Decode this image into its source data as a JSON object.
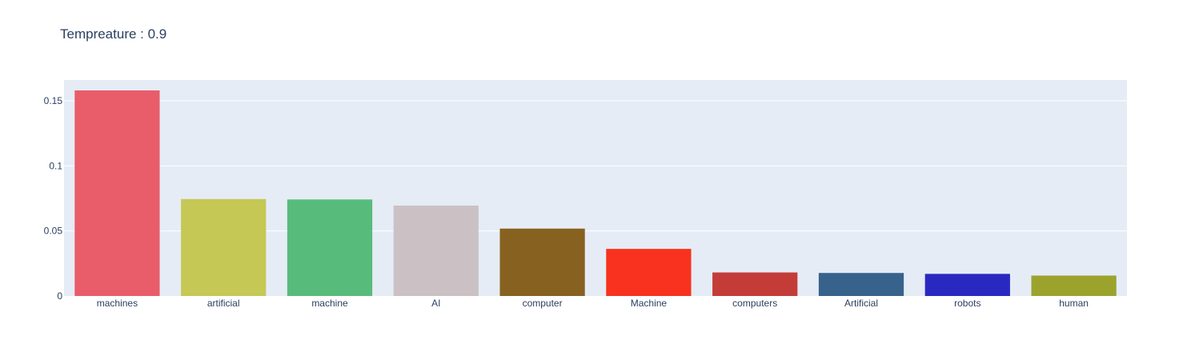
{
  "chart_data": {
    "type": "bar",
    "title": "Tempreature : 0.9",
    "categories": [
      "machines",
      "artificial",
      "machine",
      "AI",
      "computer",
      "Machine",
      "computers",
      "Artificial",
      "robots",
      "human"
    ],
    "values": [
      0.158,
      0.0745,
      0.0742,
      0.0695,
      0.0518,
      0.0362,
      0.0181,
      0.0177,
      0.017,
      0.0157
    ],
    "colors": [
      "#e95d6b",
      "#c5c854",
      "#57bc7b",
      "#cbc1c4",
      "#87611f",
      "#f8321f",
      "#c43c38",
      "#37628c",
      "#2929c1",
      "#9ca32d"
    ],
    "yticks": [
      0,
      0.05,
      0.1,
      0.15
    ],
    "ytick_labels": [
      "0",
      "0.05",
      "0.1",
      "0.15"
    ],
    "ylim": [
      0,
      0.166
    ],
    "xlabel": "",
    "ylabel": "",
    "grid": true,
    "plot_background": "#e5ecf6",
    "gridline_color": "#ffffff"
  }
}
